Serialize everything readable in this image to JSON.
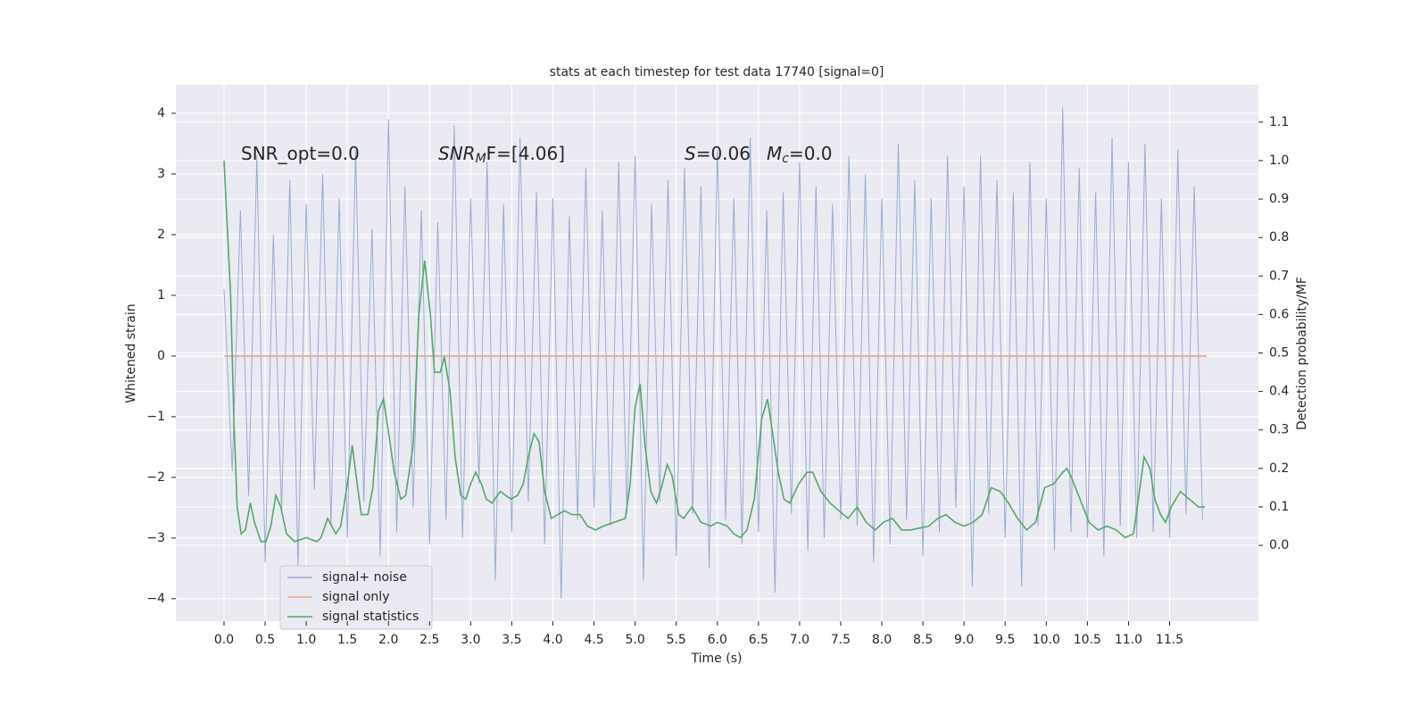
{
  "chart_data": {
    "type": "line",
    "title": "stats at each timestep for test data 17740 [signal=0]",
    "xlabel": "Time (s)",
    "ylabel": "Whitened strain",
    "y2label": "Detection probability/MF",
    "annotations": [
      {
        "parts": [
          "SNR_opt=0.0"
        ]
      },
      {
        "parts": [
          "SNR",
          "M",
          "F=[4.06]"
        ]
      },
      {
        "parts": [
          "S",
          "=0.06"
        ]
      },
      {
        "parts": [
          "M",
          "c",
          "=0.0"
        ]
      }
    ],
    "xlim": [
      -0.586,
      12.58
    ],
    "ylim": [
      -4.37,
      4.47
    ],
    "y2lim": [
      -0.197,
      1.197
    ],
    "xticks": [
      {
        "value": 0,
        "label": "0.0"
      },
      0.5,
      {
        "value": 1,
        "label": "1.0"
      },
      1.5,
      {
        "value": 2,
        "label": "2.0"
      },
      2.5,
      {
        "value": 3,
        "label": "3.0"
      },
      3.5,
      {
        "value": 4,
        "label": "4.0"
      },
      4.5,
      {
        "value": 5,
        "label": "5.0"
      },
      5.5,
      {
        "value": 6,
        "label": "6.0"
      },
      6.5,
      {
        "value": 7,
        "label": "7.0"
      },
      7.5,
      {
        "value": 8,
        "label": "8.0"
      },
      8.5,
      {
        "value": 9,
        "label": "9.0"
      },
      9.5,
      {
        "value": 10,
        "label": "10.0"
      },
      10.5,
      {
        "value": 11,
        "label": "11.0"
      },
      11.5
    ],
    "yticks": [
      {
        "value": -4,
        "label": "−4"
      },
      {
        "value": -3,
        "label": "−3"
      },
      {
        "value": -2,
        "label": "−2"
      },
      {
        "value": -1,
        "label": "−1"
      },
      0,
      1,
      2,
      3,
      4
    ],
    "y2ticks": [
      {
        "value": 0,
        "label": "0.0"
      },
      0.1,
      0.2,
      0.3,
      0.4,
      0.5,
      0.6,
      0.7,
      0.8,
      0.9,
      {
        "value": 1,
        "label": "1.0"
      },
      1.1
    ],
    "grid": true,
    "legend": "lower left",
    "series": [
      {
        "name": "signal+ noise",
        "color": "#9aabd3",
        "x": [
          0,
          0.1,
          0.2,
          0.3,
          0.4,
          0.5,
          0.6,
          0.7,
          0.8,
          0.9,
          1,
          1.1,
          1.2,
          1.3,
          1.4,
          1.5,
          1.6,
          1.7,
          1.8,
          1.9,
          2,
          2.1,
          2.2,
          2.3,
          2.4,
          2.5,
          2.6,
          2.7,
          2.8,
          2.9,
          3,
          3.1,
          3.2,
          3.3,
          3.4,
          3.5,
          3.6,
          3.7,
          3.8,
          3.9,
          4,
          4.1,
          4.2,
          4.3,
          4.4,
          4.5,
          4.6,
          4.7,
          4.8,
          4.9,
          5,
          5.1,
          5.2,
          5.3,
          5.4,
          5.5,
          5.6,
          5.7,
          5.8,
          5.9,
          6,
          6.1,
          6.2,
          6.3,
          6.4,
          6.5,
          6.6,
          6.7,
          6.8,
          6.9,
          7,
          7.1,
          7.2,
          7.3,
          7.4,
          7.5,
          7.6,
          7.7,
          7.8,
          7.9,
          8,
          8.1,
          8.2,
          8.3,
          8.4,
          8.5,
          8.6,
          8.7,
          8.8,
          8.9,
          9,
          9.1,
          9.2,
          9.3,
          9.4,
          9.5,
          9.6,
          9.7,
          9.8,
          9.9,
          10,
          10.1,
          10.2,
          10.3,
          10.4,
          10.5,
          10.6,
          10.7,
          10.8,
          10.9,
          11,
          11.1,
          11.2,
          11.3,
          11.4,
          11.5,
          11.6,
          11.7,
          11.8,
          11.9
        ],
        "values": [
          1.1,
          -1.9,
          2.4,
          -2.3,
          3.3,
          -3.4,
          2.0,
          -2.6,
          2.9,
          -3.5,
          2.5,
          -2.2,
          3.0,
          -2.8,
          2.6,
          -3.0,
          3.4,
          -2.4,
          2.1,
          -3.3,
          3.9,
          -2.9,
          2.8,
          -2.5,
          2.4,
          -3.1,
          2.2,
          -2.7,
          3.8,
          -3.0,
          2.6,
          -2.1,
          3.2,
          -3.7,
          2.5,
          -2.9,
          3.6,
          -2.4,
          2.7,
          -3.1,
          2.6,
          -4.0,
          2.3,
          -2.7,
          3.1,
          -2.5,
          2.4,
          -2.8,
          3.2,
          -2.6,
          3.3,
          -3.7,
          2.5,
          -2.4,
          2.9,
          -3.3,
          3.1,
          -2.6,
          2.8,
          -3.5,
          3.4,
          -2.7,
          2.6,
          -3.1,
          3.6,
          -2.9,
          2.4,
          -3.9,
          2.7,
          -2.6,
          3.2,
          -3.2,
          2.8,
          -3.0,
          2.5,
          -2.7,
          3.3,
          -2.8,
          3.0,
          -3.4,
          2.6,
          -3.1,
          3.5,
          -2.7,
          2.9,
          -3.3,
          2.6,
          -2.9,
          3.3,
          -2.5,
          2.8,
          -3.8,
          3.3,
          -2.6,
          2.9,
          -3.0,
          2.7,
          -3.8,
          3.2,
          -2.8,
          2.6,
          -3.2,
          4.1,
          -2.9,
          3.1,
          -3.0,
          2.7,
          -3.3,
          3.6,
          -2.8,
          3.2,
          -3.0,
          3.5,
          -2.9,
          2.6,
          -3.0,
          3.4,
          -2.6,
          2.8,
          -2.7
        ]
      },
      {
        "name": "signal only",
        "color": "#e8a98a",
        "x": [
          0,
          11.95
        ],
        "values": [
          0,
          0
        ]
      },
      {
        "name": "signal statistics",
        "color": "#55a868",
        "axis": "y2",
        "x": [
          0,
          0.08,
          0.12,
          0.16,
          0.21,
          0.26,
          0.32,
          0.37,
          0.45,
          0.51,
          0.57,
          0.63,
          0.69,
          0.76,
          0.86,
          1.0,
          1.13,
          1.18,
          1.26,
          1.36,
          1.42,
          1.5,
          1.56,
          1.62,
          1.67,
          1.75,
          1.81,
          1.88,
          1.94,
          2.01,
          2.07,
          2.15,
          2.21,
          2.3,
          2.37,
          2.44,
          2.51,
          2.56,
          2.63,
          2.68,
          2.75,
          2.81,
          2.88,
          2.94,
          3.0,
          3.06,
          3.13,
          3.19,
          3.26,
          3.36,
          3.49,
          3.57,
          3.64,
          3.7,
          3.77,
          3.83,
          3.9,
          3.98,
          4.06,
          4.14,
          4.23,
          4.33,
          4.42,
          4.52,
          4.61,
          4.88,
          4.94,
          5.0,
          5.06,
          5.12,
          5.19,
          5.26,
          5.32,
          5.39,
          5.45,
          5.53,
          5.59,
          5.69,
          5.8,
          5.92,
          6.0,
          6.12,
          6.2,
          6.28,
          6.36,
          6.45,
          6.54,
          6.61,
          6.68,
          6.74,
          6.81,
          6.88,
          6.99,
          7.09,
          7.16,
          7.26,
          7.37,
          7.48,
          7.59,
          7.7,
          7.81,
          7.92,
          8.02,
          8.13,
          8.24,
          8.35,
          8.57,
          8.68,
          8.78,
          8.89,
          9.0,
          9.11,
          9.22,
          9.33,
          9.44,
          9.54,
          9.65,
          9.76,
          9.87,
          9.98,
          10.09,
          10.2,
          10.25,
          10.3,
          10.41,
          10.52,
          10.63,
          10.74,
          10.85,
          10.96,
          11.06,
          11.12,
          11.19,
          11.26,
          11.32,
          11.39,
          11.45,
          11.52,
          11.63,
          11.74,
          11.85,
          11.93
        ],
        "values": [
          1.0,
          0.65,
          0.33,
          0.1,
          0.03,
          0.04,
          0.11,
          0.06,
          0.01,
          0.01,
          0.05,
          0.13,
          0.1,
          0.03,
          0.01,
          0.02,
          0.01,
          0.02,
          0.07,
          0.03,
          0.05,
          0.16,
          0.26,
          0.16,
          0.08,
          0.08,
          0.15,
          0.35,
          0.38,
          0.28,
          0.19,
          0.12,
          0.13,
          0.26,
          0.6,
          0.74,
          0.6,
          0.45,
          0.45,
          0.49,
          0.4,
          0.23,
          0.13,
          0.12,
          0.16,
          0.19,
          0.16,
          0.12,
          0.11,
          0.14,
          0.12,
          0.13,
          0.16,
          0.23,
          0.29,
          0.27,
          0.14,
          0.07,
          0.08,
          0.09,
          0.08,
          0.08,
          0.05,
          0.04,
          0.05,
          0.07,
          0.16,
          0.36,
          0.42,
          0.26,
          0.14,
          0.11,
          0.15,
          0.21,
          0.18,
          0.08,
          0.07,
          0.1,
          0.06,
          0.05,
          0.06,
          0.05,
          0.03,
          0.02,
          0.04,
          0.12,
          0.33,
          0.38,
          0.28,
          0.19,
          0.12,
          0.11,
          0.16,
          0.19,
          0.19,
          0.14,
          0.11,
          0.09,
          0.07,
          0.1,
          0.06,
          0.04,
          0.06,
          0.07,
          0.04,
          0.04,
          0.05,
          0.07,
          0.08,
          0.06,
          0.05,
          0.06,
          0.08,
          0.15,
          0.14,
          0.11,
          0.07,
          0.04,
          0.06,
          0.15,
          0.16,
          0.19,
          0.2,
          0.18,
          0.12,
          0.06,
          0.04,
          0.05,
          0.04,
          0.02,
          0.03,
          0.12,
          0.23,
          0.2,
          0.12,
          0.08,
          0.06,
          0.1,
          0.14,
          0.12,
          0.1,
          0.1
        ]
      }
    ]
  }
}
